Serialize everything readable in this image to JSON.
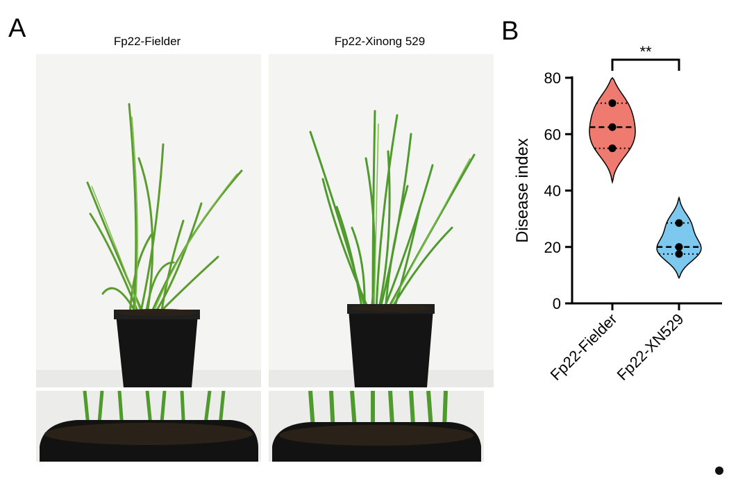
{
  "panel_a": {
    "letter": "A",
    "photo_titles": [
      "Fp22-Fielder",
      "Fp22-Xinong 529"
    ]
  },
  "panel_b": {
    "letter": "B"
  },
  "colors": {
    "fielder": "#ef7a6f",
    "xn529": "#7cc8ee",
    "leaf": "#4f9a2c",
    "pot": "#141414",
    "soil": "#2a2218"
  },
  "chart_data": {
    "type": "violin",
    "ylabel": "Disease index",
    "ylim": [
      0,
      80
    ],
    "yticks": [
      0,
      20,
      40,
      60,
      80
    ],
    "categories": [
      "Fp22-Fielder",
      "Fp22-XN529"
    ],
    "series": [
      {
        "category": "Fp22-Fielder",
        "points": [
          71,
          62.5,
          55
        ],
        "median": 62.5,
        "q1": 55,
        "q3": 71,
        "min": 43,
        "max": 80,
        "color": "#ef7a6f"
      },
      {
        "category": "Fp22-XN529",
        "points": [
          28.5,
          20,
          17.5
        ],
        "median": 20,
        "q1": 17.5,
        "q3": 28.5,
        "min": 9,
        "max": 37.5,
        "color": "#7cc8ee"
      }
    ],
    "significance": {
      "label": "**",
      "between": [
        "Fp22-Fielder",
        "Fp22-XN529"
      ]
    }
  }
}
